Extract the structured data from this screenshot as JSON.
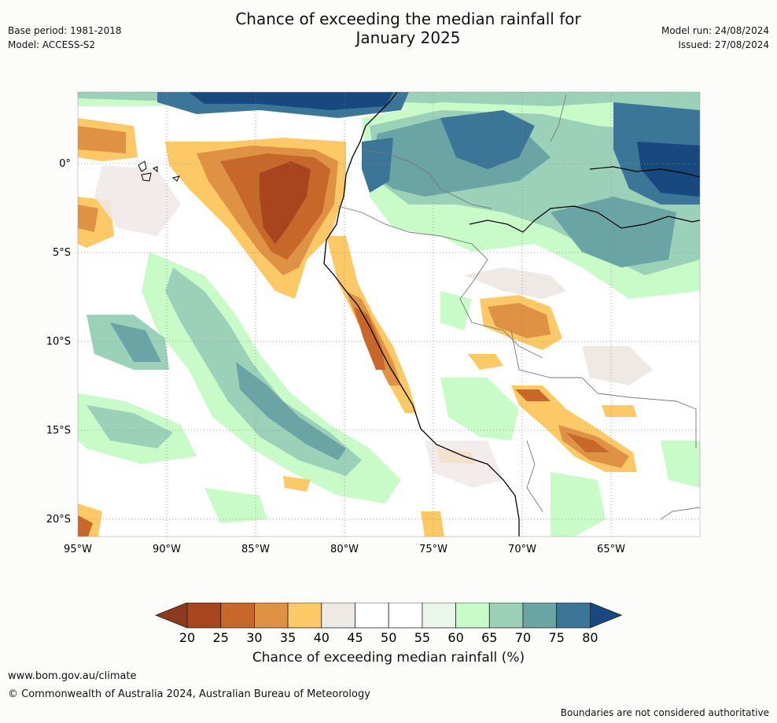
{
  "title_line1": "Chance of exceeding the median rainfall for",
  "title_line2": "January 2025",
  "meta": {
    "base_period": "Base period: 1981-2018",
    "model": "Model: ACCESS-S2",
    "model_run": "Model run: 24/08/2024",
    "issued": "Issued: 27/08/2024"
  },
  "map": {
    "lon_ticks": [
      "95°W",
      "90°W",
      "85°W",
      "80°W",
      "75°W",
      "70°W",
      "65°W"
    ],
    "lat_ticks": [
      "0°",
      "5°S",
      "10°S",
      "15°S",
      "20°S"
    ]
  },
  "legend": {
    "title": "Chance of exceeding median rainfall (%)",
    "ticks": [
      "20",
      "25",
      "30",
      "35",
      "40",
      "45",
      "50",
      "55",
      "60",
      "65",
      "70",
      "75",
      "80"
    ],
    "colors": [
      "#a8451f",
      "#c8672a",
      "#df9244",
      "#fdc966",
      "#efe9e6",
      "#ffffff",
      "#ffffff",
      "#eaf6ea",
      "#c9fbc9",
      "#9bd1b9",
      "#6aa4a4",
      "#3b7598"
    ],
    "low_arrow_color": "#8c3a1e",
    "high_arrow_color": "#17497e"
  },
  "footer": {
    "url": "www.bom.gov.au/climate",
    "copyright": "© Commonwealth of Australia 2024, Australian Bureau of Meteorology",
    "note": "Boundaries are not considered authoritative"
  }
}
